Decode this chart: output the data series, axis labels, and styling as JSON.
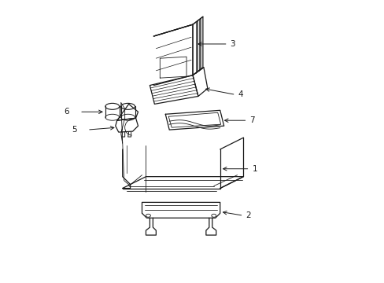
{
  "background_color": "#ffffff",
  "line_color": "#1a1a1a",
  "line_width": 0.9,
  "label_fontsize": 7.5,
  "parts": [
    {
      "id": 1,
      "label": "1"
    },
    {
      "id": 2,
      "label": "2"
    },
    {
      "id": 3,
      "label": "3"
    },
    {
      "id": 4,
      "label": "4"
    },
    {
      "id": 5,
      "label": "5"
    },
    {
      "id": 6,
      "label": "6"
    },
    {
      "id": 7,
      "label": "7"
    }
  ]
}
